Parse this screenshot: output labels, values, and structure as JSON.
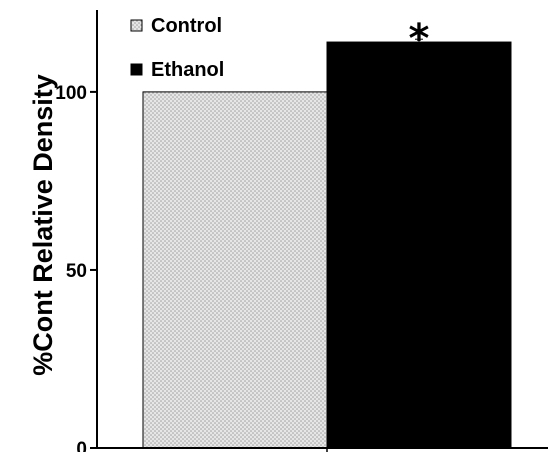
{
  "chart_data": {
    "type": "bar",
    "categories": [
      "Control",
      "Ethanol"
    ],
    "values": [
      100,
      114
    ],
    "error": [
      0,
      0.8
    ],
    "ylabel": "%Cont Relative Density",
    "ylim": [
      0,
      123
    ],
    "yticks": [
      0,
      50,
      100
    ],
    "legend": {
      "placement": "top-left",
      "entries": [
        "Control",
        "Ethanol"
      ]
    },
    "annotations": [
      {
        "text": "*",
        "category": "Ethanol"
      }
    ],
    "grid": false
  },
  "colors": {
    "control_fill": "#e6e6e6",
    "control_dot": "#9a9a9a",
    "ethanol_fill": "#000000",
    "axis": "#000000"
  }
}
